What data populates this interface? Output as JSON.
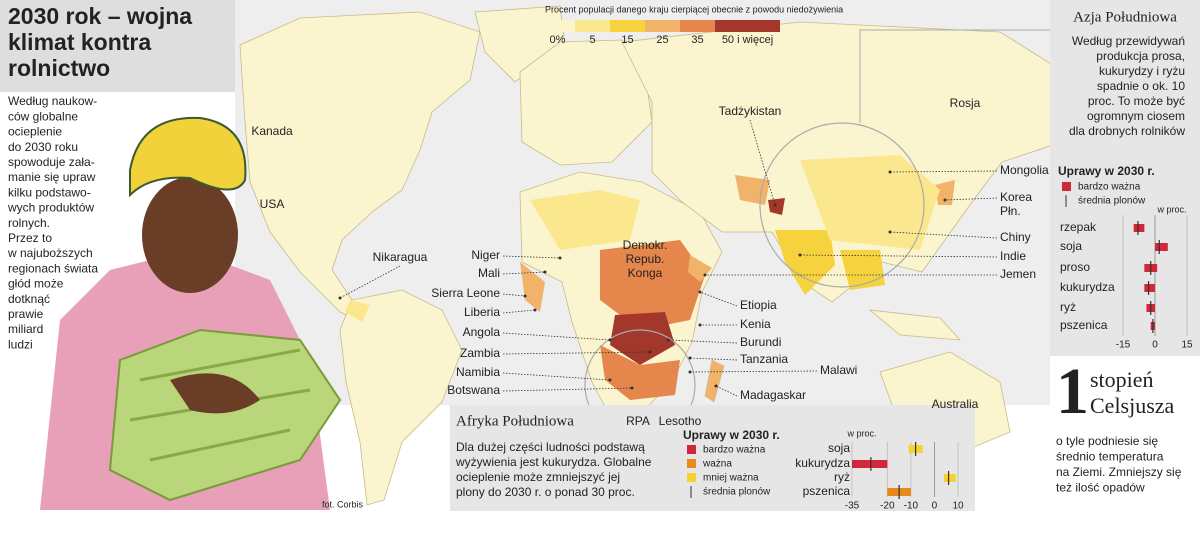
{
  "title": {
    "lines": [
      "2030 rok – wojna",
      "klimat kontra",
      "rolnictwo"
    ]
  },
  "intro": {
    "lines": [
      "Według naukow-",
      "ców globalne",
      "ocieplenie",
      "do 2030 roku",
      "spowoduje zała-",
      "manie się upraw",
      "kilku podstawo-",
      "wych produktów",
      "rolnych.",
      "Przez to",
      "w najuboższych",
      "regionach świata",
      "głód może",
      "dotknąć",
      "prawie",
      "miliard",
      "ludzi"
    ]
  },
  "photo_credit": "fot. Corbis",
  "map_legend": {
    "title": "Procent populacji danego kraju cierpiącej obecnie z powodu niedożywienia",
    "items": [
      {
        "label": "0%",
        "color": "#fbf5cf"
      },
      {
        "label": "5",
        "color": "#fbe88e"
      },
      {
        "label": "15",
        "color": "#f6d23e"
      },
      {
        "label": "25",
        "color": "#f1b26a"
      },
      {
        "label": "35",
        "color": "#e5874c"
      },
      {
        "label": "50 i więcej",
        "color": "#a4372c"
      }
    ]
  },
  "countries": [
    {
      "lines": [
        "Kanada"
      ]
    },
    {
      "lines": [
        "USA"
      ]
    },
    {
      "lines": [
        "Nikaragua"
      ]
    },
    {
      "lines": [
        "Niger"
      ]
    },
    {
      "lines": [
        "Mali"
      ]
    },
    {
      "lines": [
        "Sierra Leone"
      ]
    },
    {
      "lines": [
        "Liberia"
      ]
    },
    {
      "lines": [
        "Angola"
      ]
    },
    {
      "lines": [
        "Zambia"
      ]
    },
    {
      "lines": [
        "Namibia"
      ]
    },
    {
      "lines": [
        "Botswana"
      ]
    },
    {
      "lines": [
        "Demokr.",
        "Repub.",
        "Konga"
      ]
    },
    {
      "lines": [
        "Etiopia"
      ]
    },
    {
      "lines": [
        "Kenia"
      ]
    },
    {
      "lines": [
        "Burundi"
      ]
    },
    {
      "lines": [
        "Tanzania"
      ]
    },
    {
      "lines": [
        "Malawi"
      ]
    },
    {
      "lines": [
        "Madagaskar"
      ]
    },
    {
      "lines": [
        "RPA"
      ]
    },
    {
      "lines": [
        "Lesotho"
      ]
    },
    {
      "lines": [
        "Australia"
      ]
    },
    {
      "lines": [
        "Rosja"
      ]
    },
    {
      "lines": [
        "Tadżykistan"
      ]
    },
    {
      "lines": [
        "Mongolia"
      ]
    },
    {
      "lines": [
        "Korea",
        "Płn."
      ]
    },
    {
      "lines": [
        "Chiny"
      ]
    },
    {
      "lines": [
        "Indie"
      ]
    },
    {
      "lines": [
        "Jemen"
      ]
    }
  ],
  "asia": {
    "title": "Azja Południowa",
    "text": {
      "lines": [
        "Według przewidywań",
        "produkcja prosa,",
        "kukurydzy i ryżu",
        "spadnie o ok. 10",
        "proc. To może być",
        "ogromnym ciosem",
        "dla drobnych rolników"
      ]
    },
    "chart": {
      "type": "range-bar",
      "title": "Uprawy w 2030 r.",
      "legend": [
        {
          "label": "bardzo ważna",
          "color": "#d0283a"
        }
      ],
      "median_label": "średnia plonów",
      "unit_label": "w proc.",
      "xlim": [
        -15,
        15
      ],
      "xticks": [
        -15,
        0,
        15
      ],
      "crops": [
        {
          "name": "rzepak",
          "low": -10,
          "high": -5,
          "median": -8,
          "color": "#d0283a"
        },
        {
          "name": "soja",
          "low": 0,
          "high": 6,
          "median": 2,
          "color": "#d0283a"
        },
        {
          "name": "proso",
          "low": -5,
          "high": 1,
          "median": -2,
          "color": "#d0283a"
        },
        {
          "name": "kukurydza",
          "low": -5,
          "high": 0,
          "median": -3,
          "color": "#d0283a"
        },
        {
          "name": "ryż",
          "low": -4,
          "high": 0,
          "median": -2,
          "color": "#d0283a"
        },
        {
          "name": "pszenica",
          "low": -2,
          "high": 0,
          "median": -1,
          "color": "#d0283a"
        }
      ]
    }
  },
  "africa": {
    "title": "Afryka Południowa",
    "text": {
      "lines": [
        "Dla dużej części ludności podstawą",
        "wyżywienia jest kukurydza. Globalne",
        "ocieplenie może zmniejszyć jej",
        "plony do 2030 r. o ponad 30 proc."
      ]
    },
    "chart": {
      "type": "range-bar",
      "title": "Uprawy w 2030 r.",
      "legend": [
        {
          "label": "bardzo ważna",
          "color": "#d0283a"
        },
        {
          "label": "ważna",
          "color": "#e88a1a"
        },
        {
          "label": "mniej ważna",
          "color": "#f5d32a"
        }
      ],
      "median_label": "średnia plonów",
      "unit_label": "w proc.",
      "xlim": [
        -35,
        10
      ],
      "xticks": [
        -35,
        -20,
        -10,
        0,
        10
      ],
      "crops": [
        {
          "name": "soja",
          "low": -11,
          "high": -5,
          "median": -8,
          "color": "#f5d32a"
        },
        {
          "name": "kukurydza",
          "low": -35,
          "high": -20,
          "median": -27,
          "color": "#d0283a"
        },
        {
          "name": "ryż",
          "low": 4,
          "high": 9,
          "median": 6,
          "color": "#f5d32a"
        },
        {
          "name": "pszenica",
          "low": -20,
          "high": -10,
          "median": -15,
          "color": "#e88a1a"
        }
      ]
    }
  },
  "celsius": {
    "number": "1",
    "lines": [
      "stopień",
      "Celsjusza"
    ],
    "text": {
      "lines": [
        "o tyle podniesie się",
        "średnio temperatura",
        "na Ziemi. Zmniejszy się",
        "też ilość opadów"
      ]
    }
  }
}
